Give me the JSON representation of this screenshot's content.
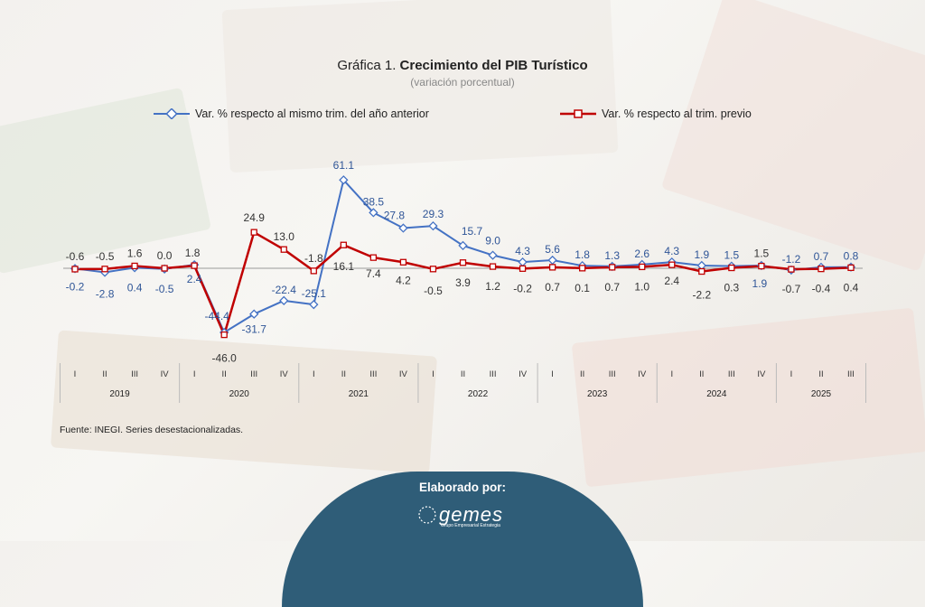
{
  "header": {
    "title_prefix": "Gráfica 1.",
    "title_main": "Crecimiento del PIB Turístico",
    "subtitle": "(variación porcentual)"
  },
  "source": "Fuente: INEGI. Series desestacionalizadas.",
  "footer": {
    "label": "Elaborado por:",
    "logo_text": "gemes",
    "logo_subtext": "Grupo Empresarial Estrategia"
  },
  "colors": {
    "series_yoy": "#4472c4",
    "series_qoq": "#c00000",
    "footer_bg": "#2f5d78"
  },
  "chart_data": {
    "type": "line",
    "title": "Crecimiento del PIB Turístico",
    "subtitle": "(variación porcentual)",
    "quarters": [
      "I",
      "II",
      "III",
      "IV",
      "I",
      "II",
      "III",
      "IV",
      "I",
      "II",
      "III",
      "IV",
      "I",
      "II",
      "III",
      "IV",
      "I",
      "II",
      "III",
      "IV",
      "I",
      "II",
      "III",
      "IV",
      "I",
      "II",
      "III"
    ],
    "years": [
      "2019",
      "2020",
      "2021",
      "2022",
      "2023",
      "2024",
      "2025"
    ],
    "year_quarter_counts": [
      4,
      4,
      4,
      4,
      4,
      4,
      3
    ],
    "series": [
      {
        "name": "Var. % respecto al mismo trim. del año anterior",
        "color": "#4472c4",
        "values": [
          -0.2,
          -2.8,
          0.4,
          -0.5,
          2.4,
          -44.4,
          -31.7,
          -22.4,
          -25.1,
          61.1,
          38.5,
          27.8,
          29.3,
          15.7,
          9.0,
          4.3,
          5.6,
          1.8,
          1.3,
          2.6,
          4.3,
          1.9,
          1.5,
          1.9,
          -1.2,
          0.7,
          0.8
        ],
        "labels": [
          "-0.2",
          "-2.8",
          "0.4",
          "-0.5",
          "2.4",
          "-44.4",
          "-31.7",
          "-22.4",
          "-25.1",
          "61.1",
          "38.5",
          "27.8",
          "29.3",
          "15.7",
          "9.0",
          "4.3",
          "5.6",
          "1.8",
          "1.3",
          "2.6",
          "4.3",
          "1.9",
          "1.5",
          "1.9",
          "-1.2",
          "0.7",
          "0.8"
        ]
      },
      {
        "name": "Var. % respecto al trim. previo",
        "color": "#c00000",
        "values": [
          -0.6,
          -0.5,
          1.6,
          0.0,
          1.8,
          -46.0,
          24.9,
          13.0,
          -1.8,
          16.1,
          7.4,
          4.2,
          -0.5,
          3.9,
          1.2,
          -0.2,
          0.7,
          0.1,
          0.7,
          1.0,
          2.4,
          -2.2,
          0.3,
          1.5,
          -0.7,
          -0.4,
          0.4
        ],
        "labels": [
          "-0.6",
          "-0.5",
          "1.6",
          "0.0",
          "1.8",
          "-46.0",
          "24.9",
          "13.0",
          "-1.8",
          "16.1",
          "7.4",
          "4.2",
          "-0.5",
          "3.9",
          "1.2",
          "-0.2",
          "0.7",
          "0.1",
          "0.7",
          "1.0",
          "2.4",
          "-2.2",
          "0.3",
          "1.5",
          "-0.7",
          "-0.4",
          "0.4"
        ]
      }
    ],
    "ylim": [
      -50,
      70
    ],
    "grid": false,
    "legend": "top"
  }
}
